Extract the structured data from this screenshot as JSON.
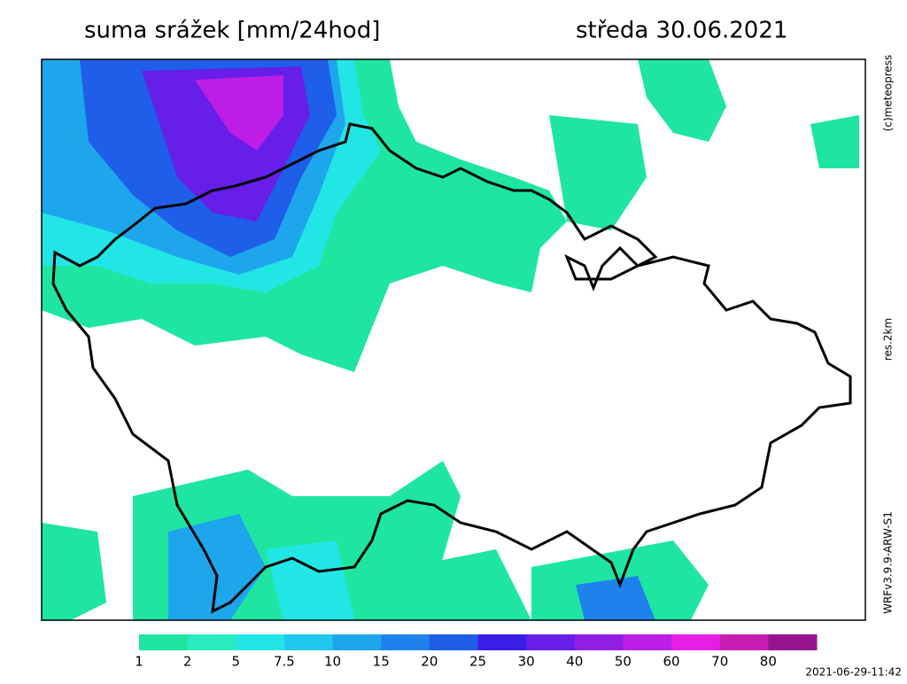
{
  "header": {
    "title": "suma srážek [mm/24hod]",
    "date": "středa 30.06.2021"
  },
  "side_labels": [
    "(c)meteopress",
    "res.2km",
    "WRFv3.9.9-ARW-S1"
  ],
  "legend": {
    "labels": [
      "1",
      "2",
      "5",
      "7.5",
      "10",
      "15",
      "20",
      "25",
      "30",
      "40",
      "50",
      "60",
      "70",
      "80"
    ],
    "colors": [
      "#1ee6a0",
      "#28ebc0",
      "#22e6e6",
      "#20c8ee",
      "#1ea6ec",
      "#1e82ec",
      "#1e5ee8",
      "#3a1ee8",
      "#661ee8",
      "#921ee6",
      "#bc1ee6",
      "#e61ee6",
      "#c81eb4",
      "#961490"
    ]
  },
  "timestamp": "2021-06-29-11:42"
}
